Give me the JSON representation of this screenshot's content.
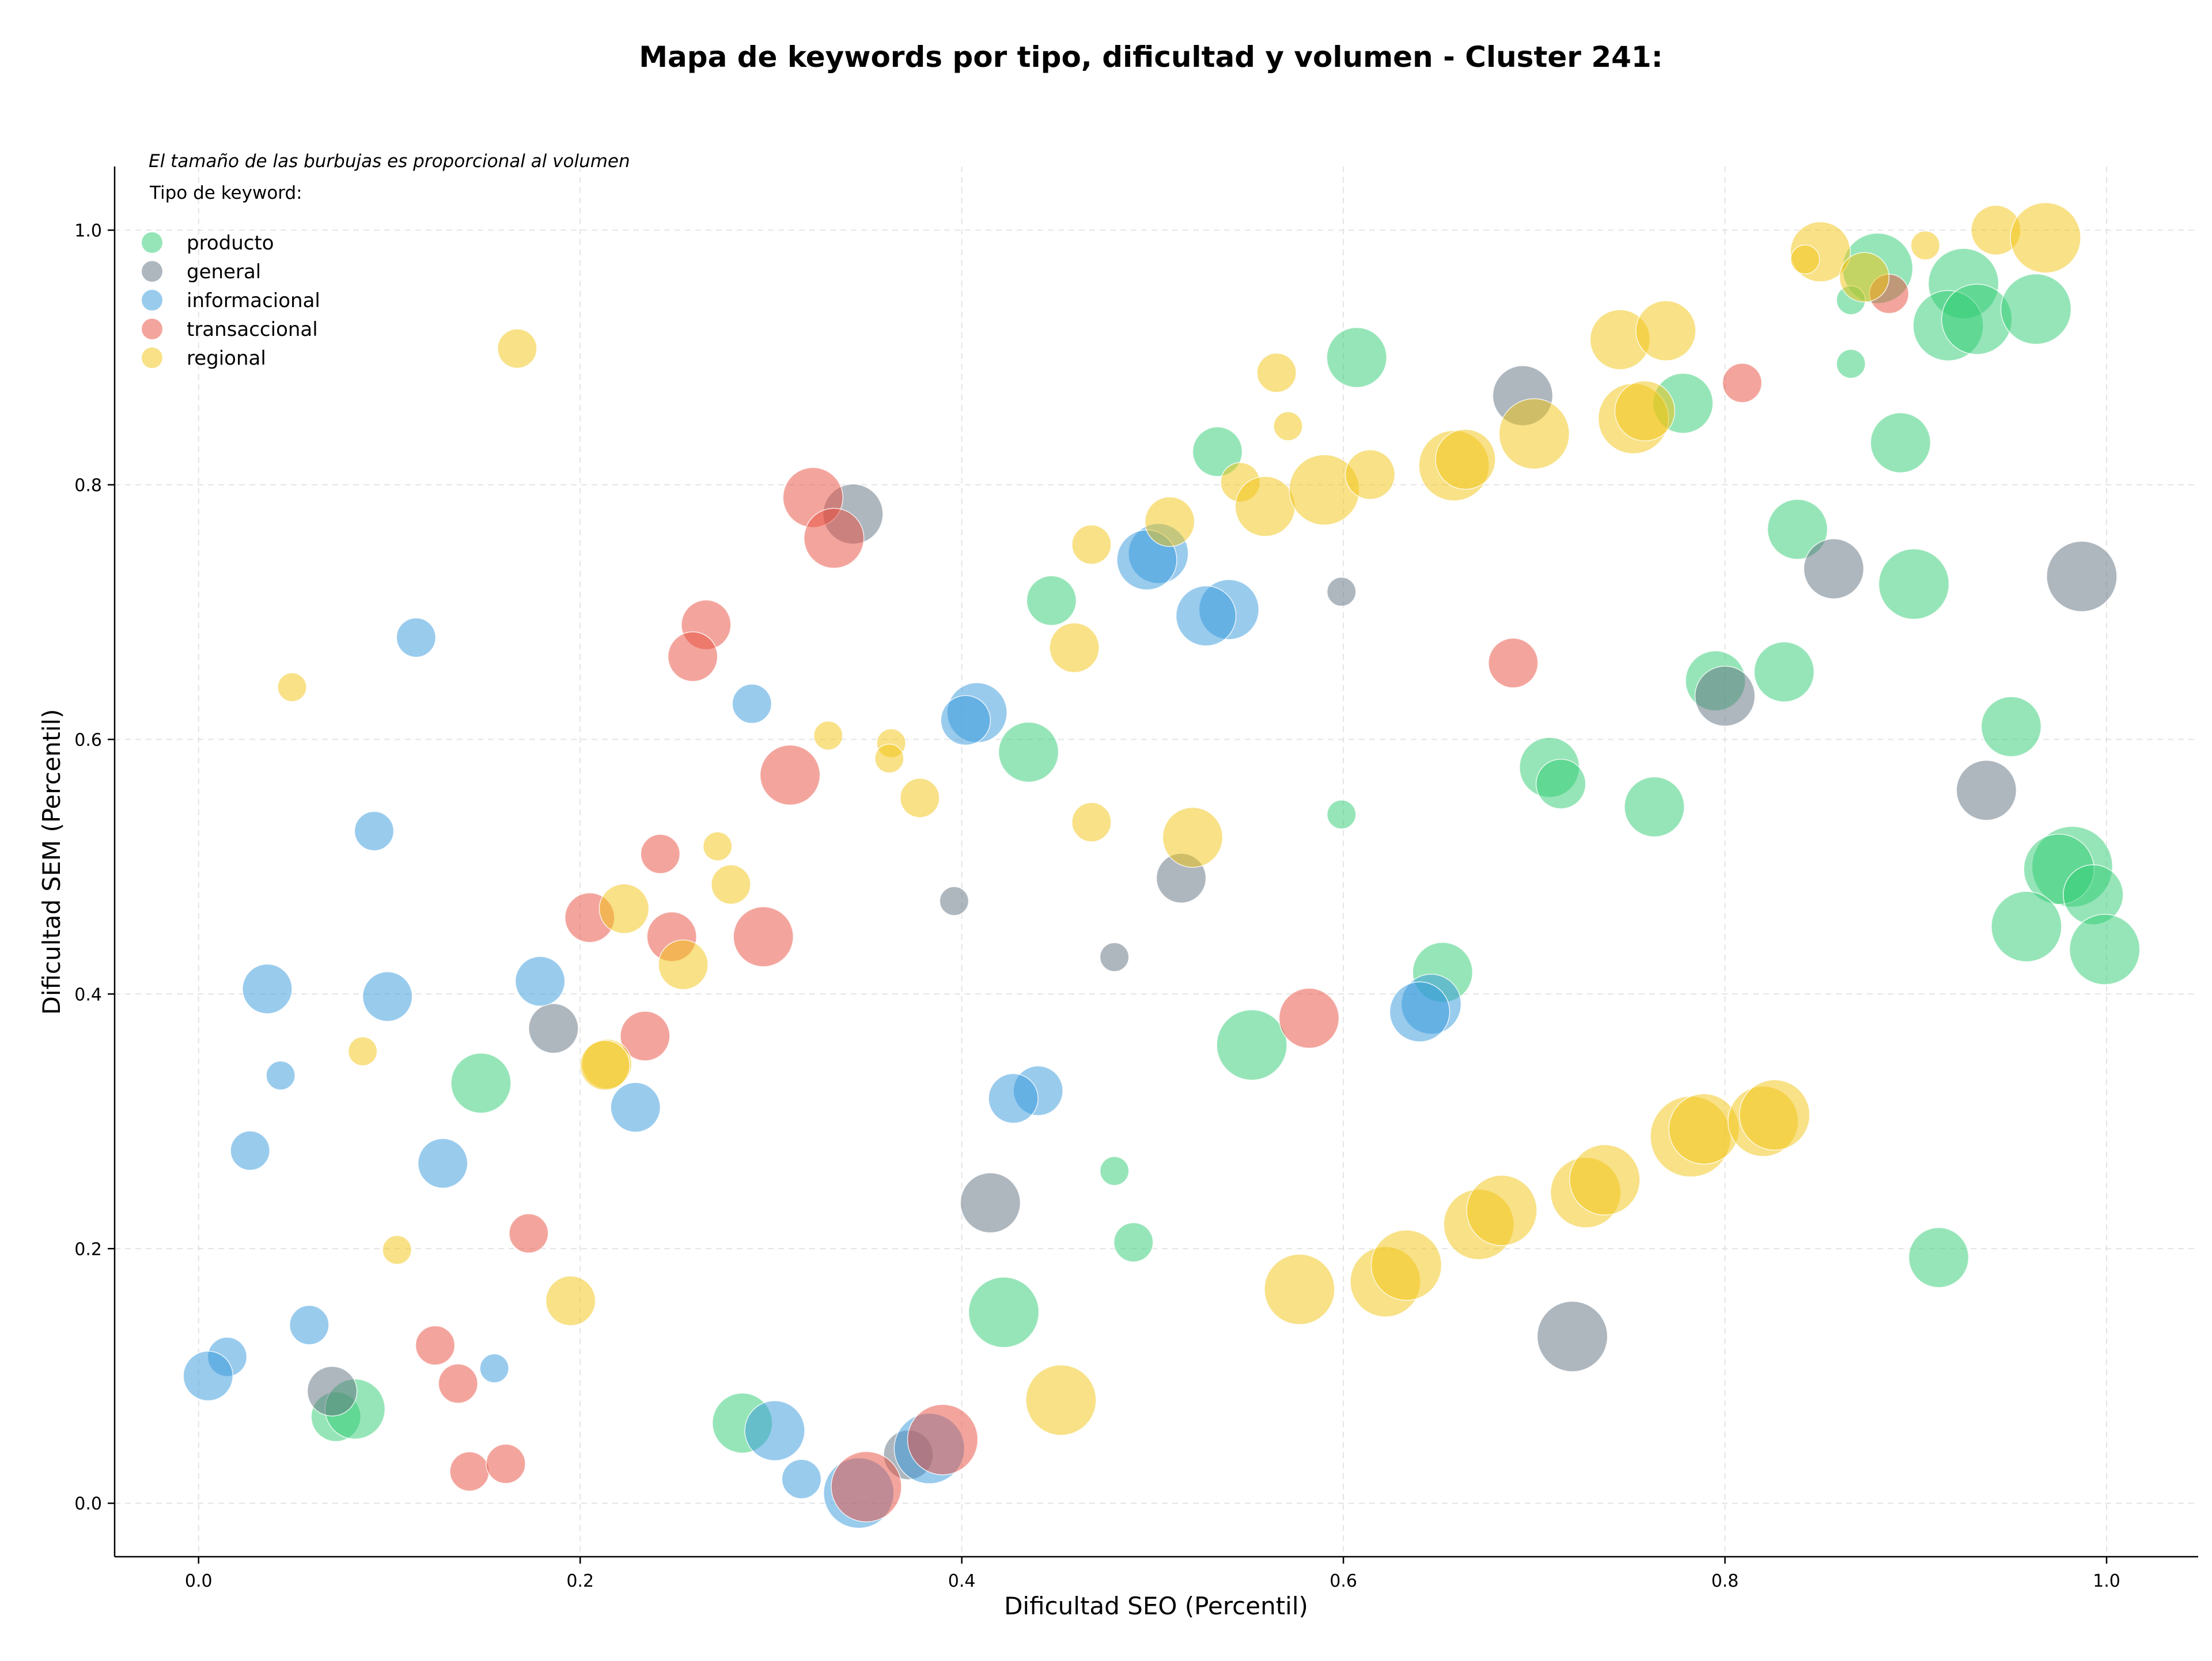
{
  "chart_data": {
    "type": "scatter",
    "title": "Mapa de keywords por tipo, dificultad y volumen - Cluster 241:",
    "xlabel": "Dificultad SEO (Percentil)",
    "ylabel": "Dificultad SEM (Percentil)",
    "annotation": "El tamaño de las burbujas es proporcional al volumen",
    "legend_title": "Tipo de keyword:",
    "legend_position": "top-left",
    "xlim": [
      -0.044,
      1.048
    ],
    "ylim": [
      -0.042,
      1.05
    ],
    "xticks": [
      "0.0",
      "0.2",
      "0.4",
      "0.6",
      "0.8",
      "1.0"
    ],
    "yticks": [
      "0.0",
      "0.2",
      "0.4",
      "0.6",
      "0.8",
      "1.0"
    ],
    "grid": true,
    "series": [
      {
        "name": "producto",
        "color": "#2ecc71",
        "points": [
          {
            "x": 0.88,
            "y": 0.97,
            "size": 5
          },
          {
            "x": 0.925,
            "y": 0.958,
            "size": 5
          },
          {
            "x": 0.917,
            "y": 0.925,
            "size": 5
          },
          {
            "x": 0.932,
            "y": 0.93,
            "size": 5
          },
          {
            "x": 0.963,
            "y": 0.938,
            "size": 5
          },
          {
            "x": 0.866,
            "y": 0.945,
            "size": 1
          },
          {
            "x": 0.866,
            "y": 0.895,
            "size": 1
          },
          {
            "x": 0.892,
            "y": 0.833,
            "size": 4
          },
          {
            "x": 0.607,
            "y": 0.9,
            "size": 4
          },
          {
            "x": 0.778,
            "y": 0.864,
            "size": 4
          },
          {
            "x": 0.534,
            "y": 0.826,
            "size": 3
          },
          {
            "x": 0.838,
            "y": 0.765,
            "size": 4
          },
          {
            "x": 0.899,
            "y": 0.722,
            "size": 5
          },
          {
            "x": 0.447,
            "y": 0.709,
            "size": 3
          },
          {
            "x": 0.795,
            "y": 0.646,
            "size": 4
          },
          {
            "x": 0.831,
            "y": 0.653,
            "size": 4
          },
          {
            "x": 0.435,
            "y": 0.59,
            "size": 4
          },
          {
            "x": 0.708,
            "y": 0.578,
            "size": 4
          },
          {
            "x": 0.714,
            "y": 0.565,
            "size": 3
          },
          {
            "x": 0.763,
            "y": 0.547,
            "size": 4
          },
          {
            "x": 0.599,
            "y": 0.541,
            "size": 1
          },
          {
            "x": 0.95,
            "y": 0.61,
            "size": 4
          },
          {
            "x": 0.982,
            "y": 0.5,
            "size": 6
          },
          {
            "x": 0.975,
            "y": 0.498,
            "size": 5
          },
          {
            "x": 0.993,
            "y": 0.478,
            "size": 4
          },
          {
            "x": 0.958,
            "y": 0.453,
            "size": 5
          },
          {
            "x": 0.999,
            "y": 0.435,
            "size": 5
          },
          {
            "x": 0.652,
            "y": 0.417,
            "size": 4
          },
          {
            "x": 0.552,
            "y": 0.36,
            "size": 5
          },
          {
            "x": 0.148,
            "y": 0.33,
            "size": 4
          },
          {
            "x": 0.48,
            "y": 0.261,
            "size": 1
          },
          {
            "x": 0.49,
            "y": 0.205,
            "size": 2
          },
          {
            "x": 0.912,
            "y": 0.193,
            "size": 4
          },
          {
            "x": 0.422,
            "y": 0.15,
            "size": 5
          },
          {
            "x": 0.285,
            "y": 0.063,
            "size": 4
          },
          {
            "x": 0.072,
            "y": 0.068,
            "size": 3
          },
          {
            "x": 0.082,
            "y": 0.074,
            "size": 4
          }
        ]
      },
      {
        "name": "general",
        "color": "#5d6d7e",
        "points": [
          {
            "x": 0.343,
            "y": 0.777,
            "size": 4
          },
          {
            "x": 0.694,
            "y": 0.87,
            "size": 4
          },
          {
            "x": 0.987,
            "y": 0.728,
            "size": 5
          },
          {
            "x": 0.857,
            "y": 0.734,
            "size": 4
          },
          {
            "x": 0.599,
            "y": 0.716,
            "size": 1
          },
          {
            "x": 0.8,
            "y": 0.634,
            "size": 4
          },
          {
            "x": 0.937,
            "y": 0.56,
            "size": 4
          },
          {
            "x": 0.515,
            "y": 0.491,
            "size": 3
          },
          {
            "x": 0.396,
            "y": 0.473,
            "size": 1
          },
          {
            "x": 0.48,
            "y": 0.429,
            "size": 1
          },
          {
            "x": 0.186,
            "y": 0.373,
            "size": 3
          },
          {
            "x": 0.415,
            "y": 0.236,
            "size": 4
          },
          {
            "x": 0.72,
            "y": 0.131,
            "size": 5
          },
          {
            "x": 0.07,
            "y": 0.088,
            "size": 3
          },
          {
            "x": 0.372,
            "y": 0.038,
            "size": 3
          }
        ]
      },
      {
        "name": "informacional",
        "color": "#3498db",
        "points": [
          {
            "x": 0.114,
            "y": 0.68,
            "size": 2
          },
          {
            "x": 0.503,
            "y": 0.746,
            "size": 4
          },
          {
            "x": 0.497,
            "y": 0.741,
            "size": 4
          },
          {
            "x": 0.54,
            "y": 0.702,
            "size": 4
          },
          {
            "x": 0.528,
            "y": 0.697,
            "size": 4
          },
          {
            "x": 0.29,
            "y": 0.628,
            "size": 2
          },
          {
            "x": 0.408,
            "y": 0.621,
            "size": 4
          },
          {
            "x": 0.402,
            "y": 0.615,
            "size": 3
          },
          {
            "x": 0.092,
            "y": 0.528,
            "size": 2
          },
          {
            "x": 0.036,
            "y": 0.404,
            "size": 3
          },
          {
            "x": 0.099,
            "y": 0.398,
            "size": 3
          },
          {
            "x": 0.179,
            "y": 0.41,
            "size": 3
          },
          {
            "x": 0.646,
            "y": 0.392,
            "size": 4
          },
          {
            "x": 0.64,
            "y": 0.386,
            "size": 4
          },
          {
            "x": 0.043,
            "y": 0.336,
            "size": 1
          },
          {
            "x": 0.44,
            "y": 0.324,
            "size": 3
          },
          {
            "x": 0.427,
            "y": 0.318,
            "size": 3
          },
          {
            "x": 0.229,
            "y": 0.311,
            "size": 3
          },
          {
            "x": 0.128,
            "y": 0.267,
            "size": 3
          },
          {
            "x": 0.027,
            "y": 0.277,
            "size": 2
          },
          {
            "x": 0.058,
            "y": 0.14,
            "size": 2
          },
          {
            "x": 0.015,
            "y": 0.115,
            "size": 2
          },
          {
            "x": 0.005,
            "y": 0.1,
            "size": 3
          },
          {
            "x": 0.155,
            "y": 0.106,
            "size": 1
          },
          {
            "x": 0.302,
            "y": 0.057,
            "size": 4
          },
          {
            "x": 0.316,
            "y": 0.019,
            "size": 2
          },
          {
            "x": 0.383,
            "y": 0.043,
            "size": 5
          },
          {
            "x": 0.346,
            "y": 0.008,
            "size": 5
          }
        ]
      },
      {
        "name": "transaccional",
        "color": "#e74c3c",
        "points": [
          {
            "x": 0.322,
            "y": 0.79,
            "size": 4
          },
          {
            "x": 0.333,
            "y": 0.758,
            "size": 4
          },
          {
            "x": 0.266,
            "y": 0.69,
            "size": 3
          },
          {
            "x": 0.259,
            "y": 0.665,
            "size": 3
          },
          {
            "x": 0.809,
            "y": 0.88,
            "size": 2
          },
          {
            "x": 0.886,
            "y": 0.95,
            "size": 2
          },
          {
            "x": 0.689,
            "y": 0.66,
            "size": 3
          },
          {
            "x": 0.31,
            "y": 0.572,
            "size": 4
          },
          {
            "x": 0.242,
            "y": 0.51,
            "size": 2
          },
          {
            "x": 0.205,
            "y": 0.46,
            "size": 3
          },
          {
            "x": 0.248,
            "y": 0.445,
            "size": 3
          },
          {
            "x": 0.296,
            "y": 0.445,
            "size": 4
          },
          {
            "x": 0.234,
            "y": 0.367,
            "size": 3
          },
          {
            "x": 0.582,
            "y": 0.381,
            "size": 4
          },
          {
            "x": 0.173,
            "y": 0.212,
            "size": 2
          },
          {
            "x": 0.124,
            "y": 0.124,
            "size": 2
          },
          {
            "x": 0.136,
            "y": 0.094,
            "size": 2
          },
          {
            "x": 0.142,
            "y": 0.025,
            "size": 2
          },
          {
            "x": 0.161,
            "y": 0.031,
            "size": 2
          },
          {
            "x": 0.35,
            "y": 0.013,
            "size": 5
          },
          {
            "x": 0.39,
            "y": 0.05,
            "size": 5
          }
        ]
      },
      {
        "name": "regional",
        "color": "#f1c40f",
        "points": [
          {
            "x": 0.167,
            "y": 0.907,
            "size": 2
          },
          {
            "x": 0.049,
            "y": 0.641,
            "size": 1
          },
          {
            "x": 0.85,
            "y": 0.983,
            "size": 4
          },
          {
            "x": 0.842,
            "y": 0.977,
            "size": 1
          },
          {
            "x": 0.873,
            "y": 0.963,
            "size": 3
          },
          {
            "x": 0.905,
            "y": 0.988,
            "size": 1
          },
          {
            "x": 0.942,
            "y": 1.0,
            "size": 3
          },
          {
            "x": 0.968,
            "y": 0.994,
            "size": 5
          },
          {
            "x": 0.745,
            "y": 0.914,
            "size": 4
          },
          {
            "x": 0.769,
            "y": 0.921,
            "size": 4
          },
          {
            "x": 0.565,
            "y": 0.888,
            "size": 2
          },
          {
            "x": 0.571,
            "y": 0.846,
            "size": 1
          },
          {
            "x": 0.7,
            "y": 0.84,
            "size": 5
          },
          {
            "x": 0.658,
            "y": 0.815,
            "size": 5
          },
          {
            "x": 0.664,
            "y": 0.82,
            "size": 4
          },
          {
            "x": 0.752,
            "y": 0.852,
            "size": 5
          },
          {
            "x": 0.758,
            "y": 0.858,
            "size": 4
          },
          {
            "x": 0.546,
            "y": 0.802,
            "size": 2
          },
          {
            "x": 0.559,
            "y": 0.783,
            "size": 4
          },
          {
            "x": 0.59,
            "y": 0.796,
            "size": 5
          },
          {
            "x": 0.614,
            "y": 0.808,
            "size": 3
          },
          {
            "x": 0.509,
            "y": 0.771,
            "size": 3
          },
          {
            "x": 0.468,
            "y": 0.753,
            "size": 2
          },
          {
            "x": 0.459,
            "y": 0.672,
            "size": 3
          },
          {
            "x": 0.33,
            "y": 0.603,
            "size": 1
          },
          {
            "x": 0.363,
            "y": 0.597,
            "size": 1
          },
          {
            "x": 0.362,
            "y": 0.585,
            "size": 1
          },
          {
            "x": 0.378,
            "y": 0.554,
            "size": 2
          },
          {
            "x": 0.468,
            "y": 0.535,
            "size": 2
          },
          {
            "x": 0.521,
            "y": 0.523,
            "size": 4
          },
          {
            "x": 0.272,
            "y": 0.516,
            "size": 1
          },
          {
            "x": 0.279,
            "y": 0.486,
            "size": 2
          },
          {
            "x": 0.223,
            "y": 0.467,
            "size": 3
          },
          {
            "x": 0.254,
            "y": 0.423,
            "size": 3
          },
          {
            "x": 0.086,
            "y": 0.355,
            "size": 1
          },
          {
            "x": 0.214,
            "y": 0.345,
            "size": 3
          },
          {
            "x": 0.213,
            "y": 0.344,
            "size": 3
          },
          {
            "x": 0.104,
            "y": 0.199,
            "size": 1
          },
          {
            "x": 0.195,
            "y": 0.159,
            "size": 3
          },
          {
            "x": 0.452,
            "y": 0.081,
            "size": 5
          },
          {
            "x": 0.577,
            "y": 0.168,
            "size": 5
          },
          {
            "x": 0.622,
            "y": 0.174,
            "size": 5
          },
          {
            "x": 0.633,
            "y": 0.187,
            "size": 5
          },
          {
            "x": 0.671,
            "y": 0.219,
            "size": 5
          },
          {
            "x": 0.683,
            "y": 0.23,
            "size": 5
          },
          {
            "x": 0.727,
            "y": 0.244,
            "size": 5
          },
          {
            "x": 0.737,
            "y": 0.254,
            "size": 5
          },
          {
            "x": 0.782,
            "y": 0.288,
            "size": 6
          },
          {
            "x": 0.789,
            "y": 0.294,
            "size": 5
          },
          {
            "x": 0.82,
            "y": 0.3,
            "size": 5
          },
          {
            "x": 0.826,
            "y": 0.305,
            "size": 5
          }
        ]
      }
    ]
  }
}
